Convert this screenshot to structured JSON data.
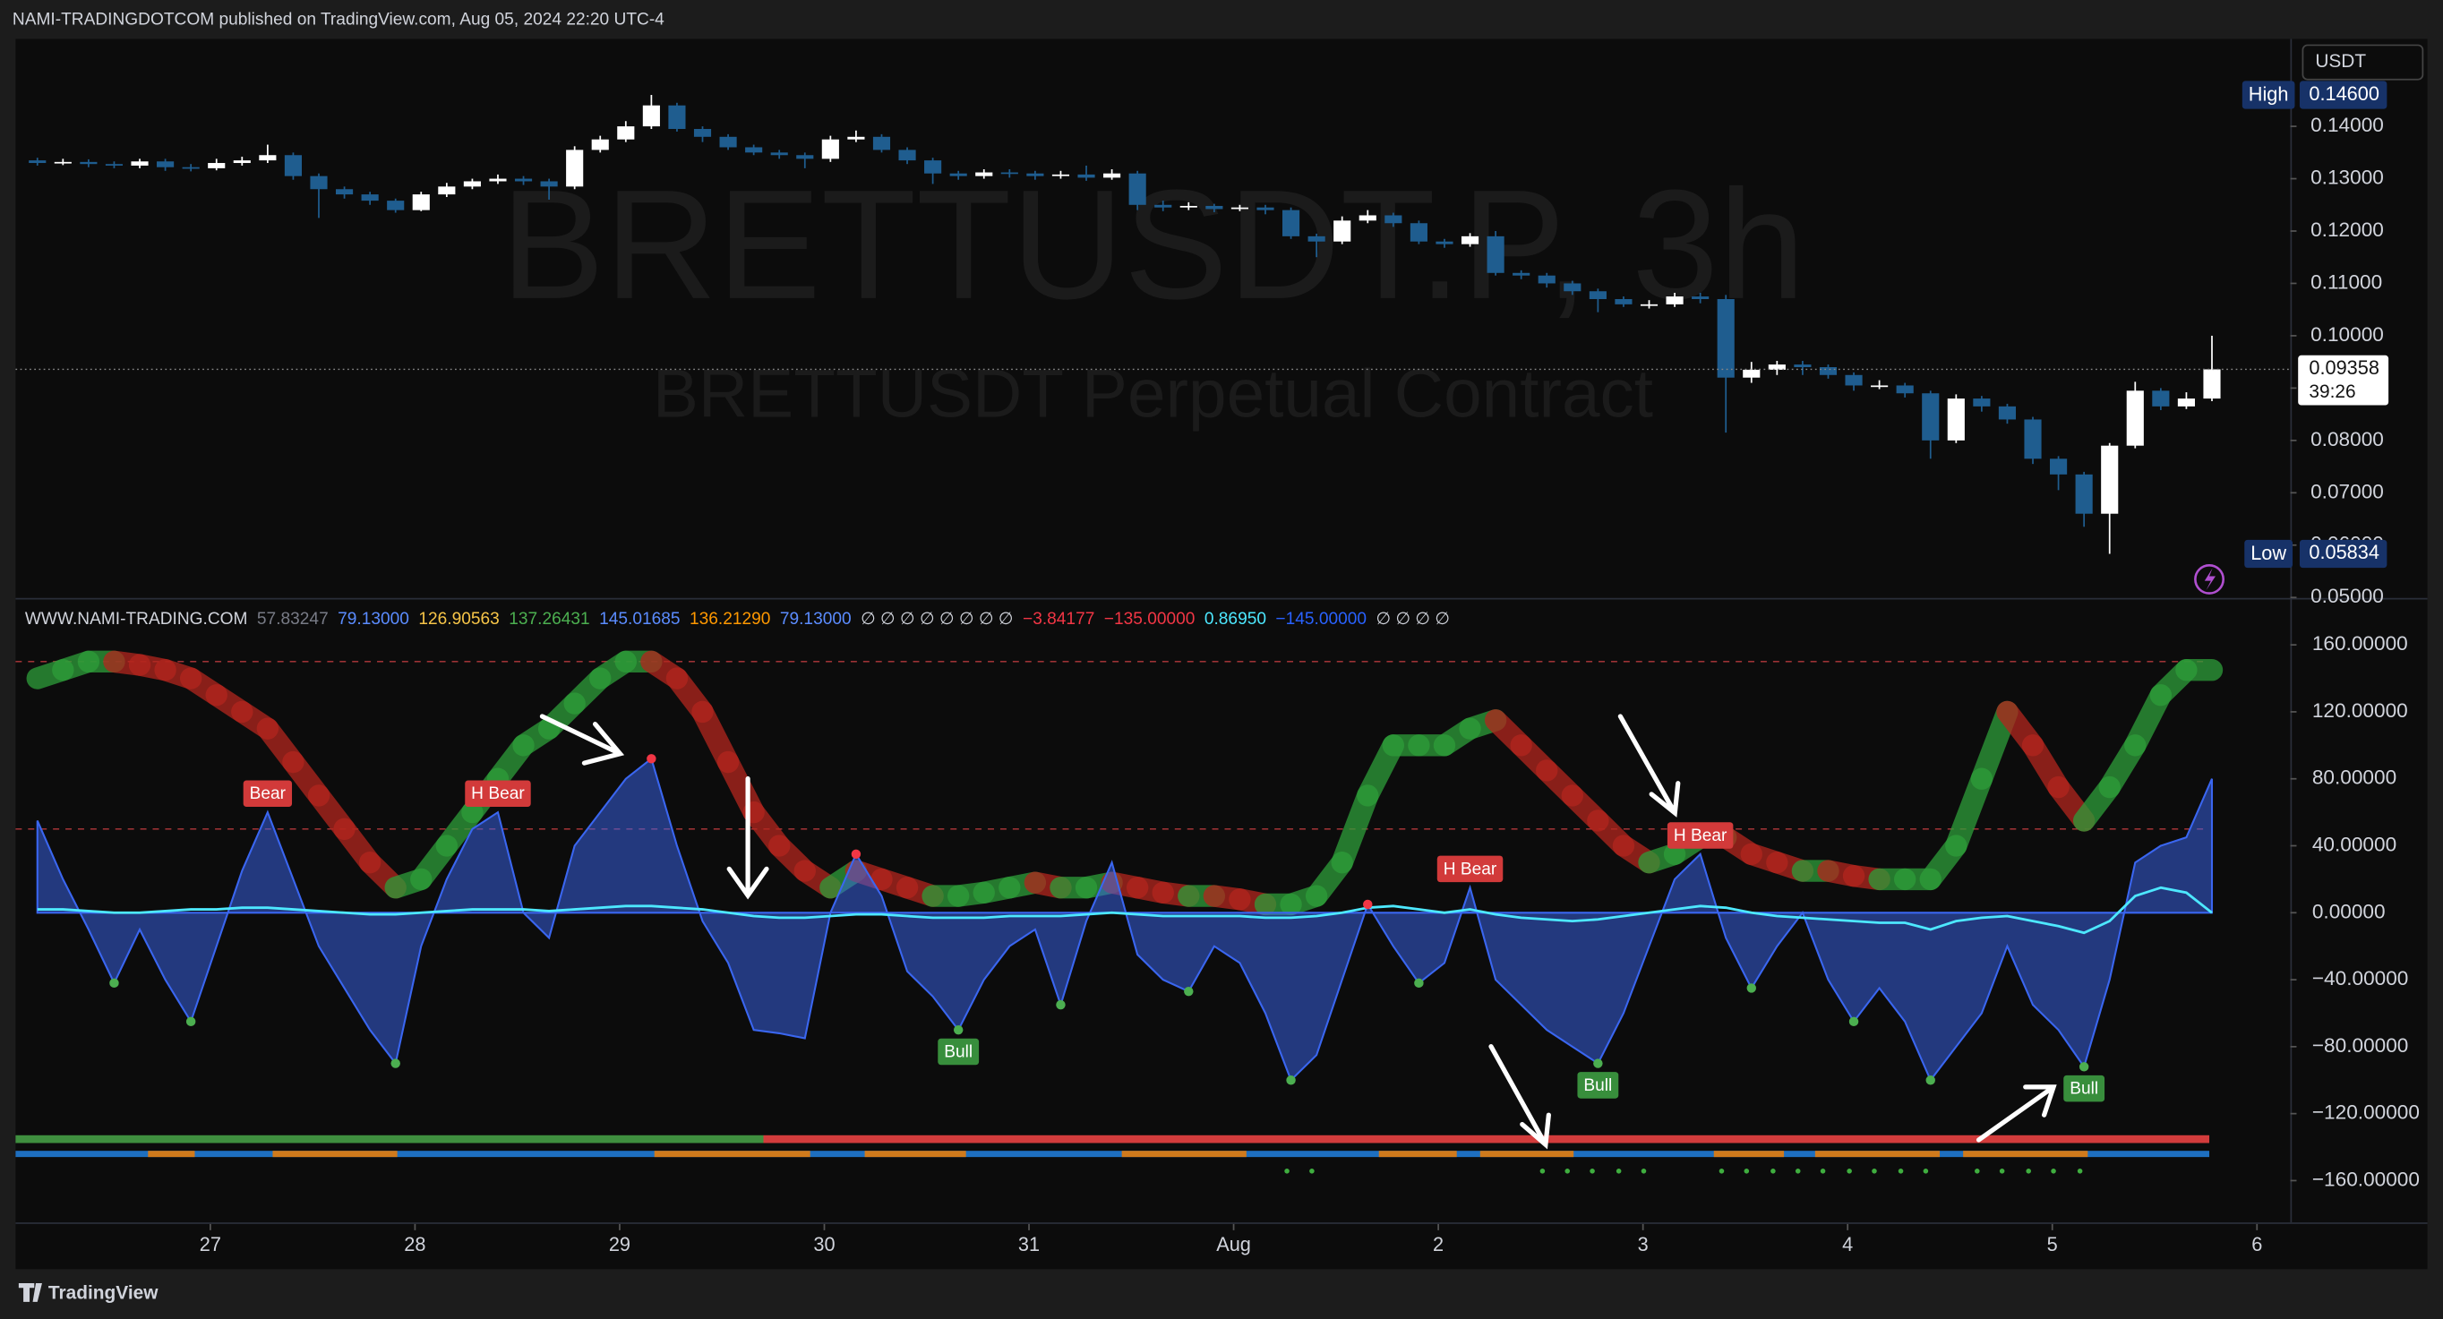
{
  "header": {
    "text": "NAMI-TRADINGDOTCOM published on TradingView.com, Aug 05, 2024 22:20 UTC-4"
  },
  "footer": {
    "brand": "TradingView"
  },
  "chart_data": [
    {
      "type": "candlestick",
      "title": "BRETTUSDT.P, 3h",
      "subtitle": "BRETTUSDT Perpetual Contract",
      "currency": "USDT",
      "up_color": "#ffffff",
      "down_color": "#1f5d8f",
      "open": [
        0.1335,
        0.133,
        0.1332,
        0.1328,
        0.1325,
        0.1333,
        0.1322,
        0.132,
        0.133,
        0.1335,
        0.1345,
        0.1305,
        0.128,
        0.127,
        0.1258,
        0.124,
        0.127,
        0.1285,
        0.1295,
        0.13,
        0.1295,
        0.1285,
        0.1355,
        0.1375,
        0.14,
        0.144,
        0.1395,
        0.138,
        0.136,
        0.135,
        0.1345,
        0.1338,
        0.1375,
        0.138,
        0.1355,
        0.1335,
        0.131,
        0.1305,
        0.1312,
        0.131,
        0.1305,
        0.1308,
        0.1302,
        0.131,
        0.125,
        0.1245,
        0.1248,
        0.1242,
        0.1245,
        0.124,
        0.119,
        0.118,
        0.122,
        0.123,
        0.1215,
        0.118,
        0.1175,
        0.119,
        0.112,
        0.1115,
        0.11,
        0.1085,
        0.107,
        0.106,
        0.106,
        0.1075,
        0.107,
        0.092,
        0.0935,
        0.0945,
        0.094,
        0.0925,
        0.0905,
        0.0905,
        0.089,
        0.08,
        0.088,
        0.0865,
        0.084,
        0.0765,
        0.0735,
        0.066,
        0.079,
        0.0895,
        0.0865,
        0.088
      ],
      "high": [
        0.134,
        0.1338,
        0.1337,
        0.1333,
        0.1338,
        0.1338,
        0.1328,
        0.1338,
        0.1342,
        0.1365,
        0.135,
        0.131,
        0.1285,
        0.1275,
        0.1262,
        0.1275,
        0.1292,
        0.13,
        0.1308,
        0.1305,
        0.13,
        0.1362,
        0.1382,
        0.141,
        0.146,
        0.1445,
        0.14,
        0.1385,
        0.1365,
        0.1355,
        0.135,
        0.1382,
        0.1392,
        0.1385,
        0.136,
        0.134,
        0.1315,
        0.1318,
        0.1318,
        0.1315,
        0.1315,
        0.1325,
        0.1318,
        0.1315,
        0.1258,
        0.1255,
        0.1252,
        0.125,
        0.125,
        0.1245,
        0.1195,
        0.1228,
        0.124,
        0.1235,
        0.122,
        0.1185,
        0.1196,
        0.12,
        0.1125,
        0.112,
        0.1105,
        0.109,
        0.1075,
        0.1068,
        0.1082,
        0.1082,
        0.1078,
        0.095,
        0.0952,
        0.0952,
        0.0945,
        0.093,
        0.0915,
        0.091,
        0.0895,
        0.0888,
        0.0885,
        0.087,
        0.0845,
        0.077,
        0.074,
        0.0795,
        0.0912,
        0.09,
        0.0892,
        0.1
      ],
      "low": [
        0.1325,
        0.1326,
        0.1322,
        0.132,
        0.132,
        0.1315,
        0.1314,
        0.1316,
        0.1325,
        0.133,
        0.1298,
        0.1225,
        0.1262,
        0.125,
        0.1235,
        0.1238,
        0.1265,
        0.128,
        0.129,
        0.1288,
        0.126,
        0.128,
        0.135,
        0.137,
        0.1395,
        0.139,
        0.137,
        0.1355,
        0.1345,
        0.1338,
        0.132,
        0.1332,
        0.137,
        0.135,
        0.1328,
        0.129,
        0.1298,
        0.13,
        0.1302,
        0.1298,
        0.13,
        0.1296,
        0.1298,
        0.124,
        0.1238,
        0.124,
        0.1236,
        0.1238,
        0.1232,
        0.1185,
        0.115,
        0.1175,
        0.1215,
        0.1208,
        0.1175,
        0.1168,
        0.117,
        0.1115,
        0.1108,
        0.1092,
        0.1078,
        0.1045,
        0.1055,
        0.1052,
        0.1055,
        0.1062,
        0.0815,
        0.091,
        0.0925,
        0.0925,
        0.0918,
        0.0895,
        0.0898,
        0.0882,
        0.0765,
        0.0795,
        0.0855,
        0.0832,
        0.0755,
        0.0705,
        0.0635,
        0.05834,
        0.0785,
        0.0858,
        0.086,
        0.0875
      ],
      "close": [
        0.133,
        0.1332,
        0.1328,
        0.1325,
        0.1333,
        0.1322,
        0.132,
        0.133,
        0.1335,
        0.1345,
        0.1305,
        0.128,
        0.127,
        0.1258,
        0.124,
        0.127,
        0.1285,
        0.1295,
        0.13,
        0.1295,
        0.1285,
        0.1355,
        0.1375,
        0.14,
        0.144,
        0.1395,
        0.138,
        0.136,
        0.135,
        0.1345,
        0.1338,
        0.1375,
        0.138,
        0.1355,
        0.1335,
        0.131,
        0.1305,
        0.1312,
        0.131,
        0.1305,
        0.1308,
        0.1302,
        0.131,
        0.125,
        0.1245,
        0.1248,
        0.1242,
        0.1245,
        0.124,
        0.119,
        0.118,
        0.122,
        0.123,
        0.1215,
        0.118,
        0.1175,
        0.119,
        0.112,
        0.1115,
        0.11,
        0.1085,
        0.107,
        0.106,
        0.106,
        0.1075,
        0.107,
        0.092,
        0.0935,
        0.0945,
        0.094,
        0.0925,
        0.0905,
        0.0905,
        0.089,
        0.08,
        0.088,
        0.0865,
        0.084,
        0.0765,
        0.0735,
        0.066,
        0.079,
        0.0895,
        0.0865,
        0.088,
        0.09358
      ],
      "ylim": [
        0.0499,
        0.1567
      ],
      "yticks": [
        {
          "value": 0.05,
          "label": "0.05000"
        },
        {
          "value": 0.06,
          "label": "0.06000"
        },
        {
          "value": 0.07,
          "label": "0.07000"
        },
        {
          "value": 0.08,
          "label": "0.08000"
        },
        {
          "value": 0.09,
          "label": "0.09000"
        },
        {
          "value": 0.1,
          "label": "0.10000"
        },
        {
          "value": 0.11,
          "label": "0.11000"
        },
        {
          "value": 0.12,
          "label": "0.12000"
        },
        {
          "value": 0.13,
          "label": "0.13000"
        },
        {
          "value": 0.14,
          "label": "0.14000"
        }
      ],
      "high_label": {
        "text": "High",
        "value": 0.146,
        "label": "0.14600"
      },
      "low_label": {
        "text": "Low",
        "value": 0.05834,
        "label": "0.05834"
      },
      "last": {
        "value": 0.09358,
        "countdown": "39:26"
      },
      "xticks": [
        {
          "value": 6.76,
          "label": "27"
        },
        {
          "value": 14.76,
          "label": "28"
        },
        {
          "value": 22.76,
          "label": "29"
        },
        {
          "value": 30.76,
          "label": "30"
        },
        {
          "value": 38.76,
          "label": "31"
        },
        {
          "value": 46.76,
          "label": "Aug"
        },
        {
          "value": 54.76,
          "label": "2"
        },
        {
          "value": 62.76,
          "label": "3"
        },
        {
          "value": 70.76,
          "label": "4"
        },
        {
          "value": 78.76,
          "label": "5"
        },
        {
          "value": 86.76,
          "label": "6"
        }
      ]
    },
    {
      "type": "oscillator",
      "title": "WWW.NAMI-TRADING.COM",
      "legend_values": [
        {
          "text": "57.83247",
          "color": "#787b86"
        },
        {
          "text": "79.13000",
          "color": "#5b8cff"
        },
        {
          "text": "126.90563",
          "color": "#f7c548"
        },
        {
          "text": "137.26431",
          "color": "#4caf50"
        },
        {
          "text": "145.01685",
          "color": "#5b8cff"
        },
        {
          "text": "136.21290",
          "color": "#ff9800"
        },
        {
          "text": "79.13000",
          "color": "#5b8cff"
        },
        {
          "text": "∅ ∅ ∅ ∅ ∅ ∅ ∅ ∅",
          "color": "#d1d4dc"
        },
        {
          "text": "−3.84177",
          "color": "#f23645"
        },
        {
          "text": "−135.00000",
          "color": "#f23645"
        },
        {
          "text": "0.86950",
          "color": "#4de8ff"
        },
        {
          "text": "−145.00000",
          "color": "#2962ff"
        },
        {
          "text": "∅ ∅ ∅ ∅",
          "color": "#d1d4dc"
        }
      ],
      "ylim": [
        -185,
        188
      ],
      "yticks": [
        {
          "value": 160,
          "label": "160.00000"
        },
        {
          "value": 120,
          "label": "120.00000"
        },
        {
          "value": 80,
          "label": "80.00000"
        },
        {
          "value": 40,
          "label": "40.00000"
        },
        {
          "value": 0,
          "label": "0.00000"
        },
        {
          "value": -40,
          "label": "−40.00000"
        },
        {
          "value": -80,
          "label": "−80.00000"
        },
        {
          "value": -120,
          "label": "−120.00000"
        },
        {
          "value": -160,
          "label": "−160.00000"
        }
      ],
      "levels": [
        150,
        50
      ],
      "level_color": "#b2383b",
      "series": [
        {
          "color": "#3a66f0",
          "values": [
            55,
            20,
            -10,
            -42,
            -10,
            -40,
            -65,
            -20,
            25,
            60,
            20,
            -20,
            -45,
            -70,
            -90,
            -20,
            20,
            50,
            60,
            0,
            -15,
            40,
            60,
            80,
            92,
            40,
            -5,
            -30,
            -70,
            -72,
            -75,
            0,
            35,
            10,
            -35,
            -50,
            -70,
            -40,
            -20,
            -10,
            -55,
            -5,
            30,
            -25,
            -40,
            -47,
            -20,
            -30,
            -60,
            -100,
            -85,
            -40,
            5,
            -20,
            -42,
            -30,
            15,
            -40,
            -55,
            -70,
            -80,
            -90,
            -60,
            -20,
            20,
            35,
            -15,
            -45,
            -20,
            0,
            -40,
            -65,
            -45,
            -65,
            -100,
            -80,
            -60,
            -20,
            -55,
            -70,
            -92,
            -40,
            30,
            40,
            45,
            80
          ]
        },
        {
          "color": "#4de8ff",
          "values": [
            2,
            2,
            1,
            0,
            0,
            1,
            2,
            2,
            3,
            3,
            2,
            1,
            0,
            -1,
            -1,
            0,
            1,
            2,
            2,
            2,
            1,
            2,
            3,
            4,
            4,
            3,
            2,
            0,
            -2,
            -3,
            -3,
            -2,
            -1,
            -1,
            -2,
            -3,
            -3,
            -3,
            -2,
            -2,
            -2,
            -1,
            0,
            -1,
            -2,
            -2,
            -2,
            -2,
            -3,
            -3,
            -2,
            0,
            3,
            4,
            2,
            0,
            2,
            -1,
            -3,
            -4,
            -5,
            -4,
            -2,
            0,
            2,
            4,
            3,
            0,
            -2,
            -3,
            -4,
            -5,
            -6,
            -6,
            -10,
            -5,
            -3,
            -2,
            -5,
            -8,
            -12,
            -5,
            10,
            15,
            12,
            0
          ]
        }
      ],
      "ribbon": {
        "color_up": "#2e9e3a",
        "color_down": "#b3261e",
        "values": [
          140,
          145,
          150,
          150,
          148,
          145,
          140,
          130,
          120,
          110,
          90,
          70,
          50,
          30,
          15,
          20,
          40,
          60,
          80,
          100,
          110,
          125,
          140,
          150,
          150,
          140,
          120,
          90,
          60,
          40,
          25,
          15,
          25,
          20,
          15,
          10,
          10,
          12,
          15,
          18,
          15,
          15,
          18,
          15,
          12,
          10,
          10,
          8,
          5,
          5,
          10,
          30,
          70,
          100,
          100,
          100,
          110,
          115,
          100,
          85,
          70,
          55,
          40,
          30,
          35,
          45,
          45,
          35,
          30,
          25,
          25,
          22,
          20,
          20,
          20,
          40,
          80,
          120,
          100,
          75,
          55,
          75,
          100,
          130,
          145,
          145
        ]
      },
      "pivot_highs": [
        24,
        32,
        52
      ],
      "pivot_high_color": "#f23645",
      "pivot_lows": [
        3,
        6,
        14,
        36,
        40,
        45,
        49,
        54,
        61,
        67,
        71,
        74,
        80
      ],
      "pivot_low_color": "#4caf50",
      "annotations": [
        {
          "text": "Bear",
          "index": 9,
          "position": "above",
          "color": "#d23a3a"
        },
        {
          "text": "H Bear",
          "index": 18,
          "position": "above",
          "color": "#d23a3a"
        },
        {
          "text": "Bull",
          "index": 36,
          "position": "below",
          "color": "#388e3c"
        },
        {
          "text": "H Bear",
          "index": 56,
          "position": "above",
          "color": "#d23a3a"
        },
        {
          "text": "Bull",
          "index": 61,
          "position": "below",
          "color": "#388e3c"
        },
        {
          "text": "H Bear",
          "index": 65,
          "position": "above",
          "color": "#d23a3a"
        },
        {
          "text": "Bull",
          "index": 80,
          "position": "below",
          "color": "#388e3c"
        }
      ]
    }
  ]
}
